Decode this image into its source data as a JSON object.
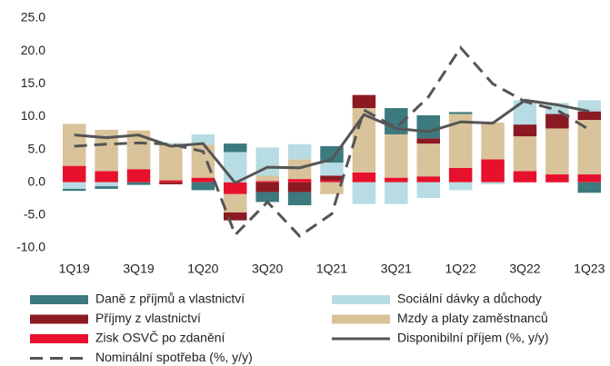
{
  "chart_data": {
    "type": "bar",
    "categories": [
      "1Q19",
      null,
      "3Q19",
      null,
      "1Q20",
      null,
      "3Q20",
      null,
      "1Q21",
      null,
      "3Q21",
      null,
      "1Q22",
      null,
      "3Q22",
      null,
      "1Q23"
    ],
    "ylim": [
      -10,
      25
    ],
    "yticks": [
      {
        "value": -10,
        "label": "-10.0"
      },
      {
        "value": -5,
        "label": "-5.0"
      },
      {
        "value": 0,
        "label": "0.0"
      },
      {
        "value": 5,
        "label": "5.0"
      },
      {
        "value": 10,
        "label": "10.0"
      },
      {
        "value": 15,
        "label": "15.0"
      },
      {
        "value": 20,
        "label": "20.0"
      },
      {
        "value": 25,
        "label": "25.0"
      }
    ],
    "series": [
      {
        "name": "Daně z příjmů a vlastnictví",
        "color": "#3c7a7e",
        "values": [
          -0.3,
          -0.4,
          -0.4,
          0,
          -1.2,
          1.3,
          -1.5,
          -2.0,
          2.5,
          0,
          4.0,
          3.5,
          0.3,
          0,
          0,
          0,
          -1.6
        ]
      },
      {
        "name": "Sociální dávky a důchody",
        "color": "#b7dce3",
        "values": [
          -1.0,
          -0.6,
          0,
          0.2,
          1.6,
          4.6,
          4.3,
          2.3,
          2.0,
          -3.3,
          -3.3,
          -2.4,
          -1.2,
          -0.3,
          3.7,
          1.7,
          1.7
        ]
      },
      {
        "name": "Příjmy z vlastnictví",
        "color": "#8b1a22",
        "values": [
          0,
          0,
          0,
          -0.3,
          0,
          -1.2,
          -1.5,
          -1.5,
          0.7,
          2.0,
          0,
          0.8,
          0,
          0,
          1.8,
          2.2,
          1.3
        ]
      },
      {
        "name": "Mzdy a platy zaměstnanců",
        "color": "#d9c39a",
        "values": [
          6.4,
          6.3,
          5.9,
          5.5,
          5.0,
          -2.8,
          0.8,
          3.0,
          -1.8,
          9.8,
          6.6,
          5.0,
          8.2,
          5.6,
          5.3,
          7.0,
          8.3
        ]
      },
      {
        "name": "Zisk OSVČ po zdanění",
        "color": "#e8112d",
        "values": [
          2.5,
          1.7,
          2.0,
          0.3,
          0.7,
          -1.8,
          0.2,
          0.5,
          0.3,
          1.5,
          0.7,
          0.9,
          2.2,
          3.5,
          1.7,
          1.2,
          1.2
        ]
      },
      {
        "name": "Disponibilní příjem (%, y/y)",
        "color": "#555555",
        "type": "line",
        "values": [
          7.2,
          6.8,
          7.2,
          5.5,
          5.9,
          -0.1,
          2.3,
          2.2,
          3.5,
          10.3,
          8.2,
          7.7,
          9.2,
          9.0,
          12.5,
          11.8,
          10.8
        ]
      },
      {
        "name": "Nominální spotřeba (%, y/y)",
        "color": "#555555",
        "type": "line",
        "dashed": true,
        "values": [
          5.5,
          5.8,
          6.0,
          5.8,
          4.7,
          -8.0,
          -3.0,
          -8.2,
          -4.8,
          11.0,
          8.3,
          13.0,
          20.5,
          15.0,
          12.3,
          11.0,
          8.0
        ]
      }
    ]
  }
}
